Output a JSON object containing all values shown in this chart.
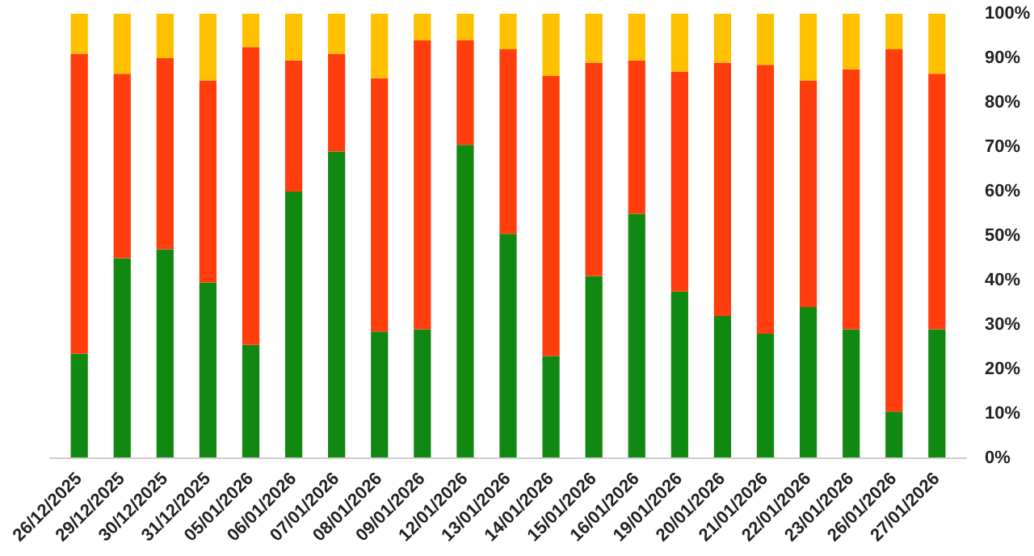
{
  "chart_data": {
    "type": "bar",
    "stacked": true,
    "categories": [
      "26/12/2025",
      "29/12/2025",
      "30/12/2025",
      "31/12/2025",
      "05/01/2026",
      "06/01/2026",
      "07/01/2026",
      "08/01/2026",
      "09/01/2026",
      "12/01/2026",
      "13/01/2026",
      "14/01/2026",
      "15/01/2026",
      "16/01/2026",
      "19/01/2026",
      "20/01/2026",
      "21/01/2026",
      "22/01/2026",
      "23/01/2026",
      "26/01/2026",
      "27/01/2026"
    ],
    "series": [
      {
        "color": "#118811",
        "values": [
          23.5,
          45,
          47,
          39.5,
          25.5,
          60,
          69,
          28.5,
          29,
          70.5,
          50.5,
          23,
          41,
          55,
          37.5,
          32,
          28,
          34,
          29,
          10.5,
          29
        ]
      },
      {
        "color": "#ff3d0d",
        "values": [
          67.5,
          41.5,
          43,
          45.5,
          67,
          29.5,
          22,
          57,
          65,
          23.5,
          41.5,
          63,
          48,
          34.5,
          49.5,
          57,
          60.5,
          51,
          58.5,
          81.5,
          57.5
        ]
      },
      {
        "color": "#ffc000",
        "values": [
          9,
          13.5,
          10,
          15,
          7.5,
          10.5,
          9,
          14.5,
          6,
          6,
          8,
          14,
          11,
          10.5,
          13,
          11,
          11.5,
          15,
          12.5,
          8,
          13.5
        ]
      }
    ],
    "ylim": [
      0,
      100
    ],
    "yticks": [
      {
        "value": 0,
        "label": "0%"
      },
      {
        "value": 10,
        "label": "10%"
      },
      {
        "value": 20,
        "label": "20%"
      },
      {
        "value": 30,
        "label": "30%"
      },
      {
        "value": 40,
        "label": "40%"
      },
      {
        "value": 50,
        "label": "50%"
      },
      {
        "value": 60,
        "label": "60%"
      },
      {
        "value": 70,
        "label": "70%"
      },
      {
        "value": 80,
        "label": "80%"
      },
      {
        "value": 90,
        "label": "90%"
      },
      {
        "value": 100,
        "label": "100%"
      }
    ],
    "grid": false
  }
}
